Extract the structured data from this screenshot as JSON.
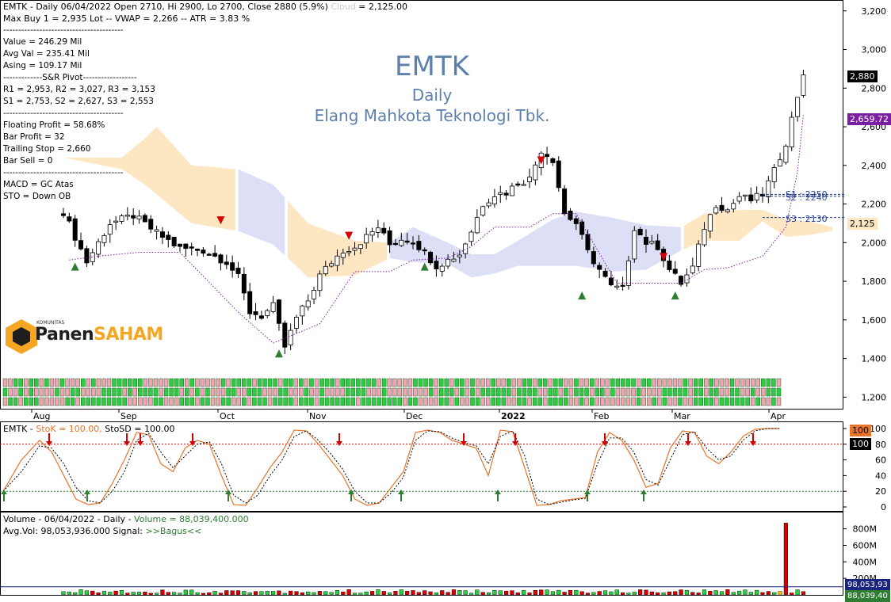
{
  "ticker": "EMTK",
  "timeframe": "Daily",
  "company": "Elang Mahkota Teknologi Tbk.",
  "header": {
    "line1": "EMTK - Daily 06/04/2022 Open 2710, Hi 2900, Lo 2700, Close 2880 (5.9%)",
    "cloud_label": "Cloud",
    "cloud_value": "= 2,125.00",
    "line2": "Max Buy 1 = 2,935 Lot  --  VWAP = 2,266  --  ATR = 3.83 %"
  },
  "info_lines": [
    "----------------------------------------",
    "Value = 246.29 Mil",
    "Avg Val = 235.41 Mil",
    "Asing = 109.17 Mil",
    "-------------S&R Pivot------------------",
    "R1 = 2,953, R2 = 3,027, R3 = 3,153",
    "S1 = 2,753, S2 = 2,627, S3 = 2,553",
    "----------------------------------------",
    "Floating Profit = 58.68%",
    "Bar Profit = 32",
    "Trailing Stop = 2,660",
    "Bar Sell = 0",
    "----------------------------------------",
    "MACD =  GC Atas",
    "STO  =  Down OB"
  ],
  "logo": {
    "small": "KOMUNITAS",
    "part1": "Panen",
    "part2": "SAHAM"
  },
  "price_axis": {
    "ticks": [
      "3,200",
      "3,000",
      "2,800",
      "2,600",
      "2,400",
      "2,200",
      "2,000",
      "1,800",
      "1,600",
      "1,400",
      "1,200"
    ],
    "values": [
      3200,
      3000,
      2800,
      2600,
      2400,
      2200,
      2000,
      1800,
      1600,
      1400,
      1200
    ],
    "range": [
      1140,
      3240
    ]
  },
  "months": [
    "Aug",
    "Sep",
    "Oct",
    "Nov",
    "Dec",
    "2022",
    "Feb",
    "Mar",
    "Apr"
  ],
  "badges": {
    "close": "2,880",
    "trail": "2,659.72",
    "cloud": "2,125"
  },
  "sr_labels": {
    "s1": "S1 : 2250",
    "s2": "S2 : 2240",
    "s3": "S3 : 2130"
  },
  "stoch": {
    "title_prefix": "EMTK - ",
    "title_stok": "StoK = 100.00,",
    "title_stosd": " StoSD = 100.00",
    "ticks": [
      "100",
      "80",
      "60",
      "40",
      "20",
      "0"
    ],
    "tick_values": [
      100,
      80,
      60,
      40,
      20,
      0
    ],
    "badge_stok": "100",
    "badge_stosd": "100",
    "upper": 80,
    "lower": 20
  },
  "volume": {
    "line1_prefix": "Volume - 06/04/2022 - Daily - ",
    "line1_value": "Volume = 88,039,400.000",
    "line2_prefix": "Avg.Vol: 98,053,936.000   Signal: ",
    "line2_signal": ">>Bagus<<",
    "ticks": [
      "800M",
      "600M",
      "400M",
      "200M"
    ],
    "tick_values": [
      800,
      600,
      400,
      200
    ],
    "badge": "98,053,93",
    "badge2": "88,039,40"
  },
  "colors": {
    "up": "#ffffff",
    "down": "#000000",
    "cloud_bull": "#fde7c2",
    "cloud_bear": "#dcdff5",
    "trail": "#7b1fa2",
    "buy": "#2e7d32",
    "sell": "#d50000",
    "stok": "#e8742a",
    "wm": "#5d7fab"
  },
  "chart_data": [
    {
      "type": "candlestick",
      "title": "EMTK Daily",
      "xlabel": "",
      "ylabel": "",
      "ylim": [
        1140,
        3240
      ],
      "x": [
        "Aug",
        "Sep",
        "Oct",
        "Nov",
        "Dec",
        "2022",
        "Feb",
        "Mar",
        "Apr"
      ],
      "close_path_points": [
        [
          0,
          2160
        ],
        [
          4,
          1900
        ],
        [
          8,
          2100
        ],
        [
          12,
          2140
        ],
        [
          16,
          2050
        ],
        [
          20,
          1970
        ],
        [
          24,
          1960
        ],
        [
          28,
          1900
        ],
        [
          30,
          1820
        ],
        [
          32,
          1640
        ],
        [
          34,
          1620
        ],
        [
          36,
          1670
        ],
        [
          38,
          1460
        ],
        [
          40,
          1610
        ],
        [
          42,
          1700
        ],
        [
          44,
          1830
        ],
        [
          46,
          1900
        ],
        [
          48,
          1960
        ],
        [
          50,
          1980
        ],
        [
          52,
          2030
        ],
        [
          54,
          2080
        ],
        [
          56,
          1990
        ],
        [
          58,
          2020
        ],
        [
          60,
          2010
        ],
        [
          62,
          1950
        ],
        [
          64,
          1880
        ],
        [
          66,
          1910
        ],
        [
          68,
          1940
        ],
        [
          70,
          2060
        ],
        [
          72,
          2200
        ],
        [
          74,
          2250
        ],
        [
          76,
          2260
        ],
        [
          78,
          2310
        ],
        [
          80,
          2330
        ],
        [
          82,
          2480
        ],
        [
          84,
          2430
        ],
        [
          86,
          2150
        ],
        [
          88,
          2100
        ],
        [
          90,
          1950
        ],
        [
          92,
          1860
        ],
        [
          94,
          1770
        ],
        [
          96,
          1760
        ],
        [
          98,
          2080
        ],
        [
          100,
          2000
        ],
        [
          102,
          1980
        ],
        [
          104,
          1860
        ],
        [
          106,
          1790
        ],
        [
          108,
          1870
        ],
        [
          110,
          2080
        ],
        [
          112,
          2200
        ],
        [
          114,
          2170
        ],
        [
          116,
          2240
        ],
        [
          118,
          2220
        ],
        [
          120,
          2250
        ],
        [
          122,
          2370
        ],
        [
          124,
          2520
        ],
        [
          126,
          2760
        ],
        [
          127,
          2880
        ]
      ],
      "cloud_top_points": [
        [
          0,
          2440
        ],
        [
          10,
          2440
        ],
        [
          14,
          2540
        ],
        [
          16,
          2600
        ],
        [
          22,
          2400
        ],
        [
          30,
          2380
        ],
        [
          36,
          2300
        ],
        [
          42,
          2100
        ],
        [
          50,
          2010
        ],
        [
          56,
          2000
        ],
        [
          60,
          2080
        ],
        [
          66,
          2000
        ],
        [
          70,
          1940
        ],
        [
          74,
          1940
        ],
        [
          78,
          2010
        ],
        [
          84,
          2120
        ],
        [
          88,
          2160
        ],
        [
          94,
          2130
        ],
        [
          100,
          2090
        ],
        [
          106,
          2080
        ],
        [
          110,
          2150
        ],
        [
          116,
          2170
        ],
        [
          120,
          2170
        ],
        [
          124,
          2120
        ],
        [
          128,
          2110
        ],
        [
          132,
          2080
        ]
      ],
      "cloud_bottom_points": [
        [
          0,
          2440
        ],
        [
          10,
          2380
        ],
        [
          14,
          2300
        ],
        [
          16,
          2250
        ],
        [
          22,
          2100
        ],
        [
          30,
          2060
        ],
        [
          36,
          1990
        ],
        [
          42,
          1820
        ],
        [
          50,
          1830
        ],
        [
          56,
          1920
        ],
        [
          60,
          1900
        ],
        [
          66,
          1890
        ],
        [
          70,
          1820
        ],
        [
          74,
          1840
        ],
        [
          78,
          1880
        ],
        [
          84,
          1880
        ],
        [
          88,
          1880
        ],
        [
          94,
          1850
        ],
        [
          100,
          1860
        ],
        [
          106,
          1960
        ],
        [
          110,
          2010
        ],
        [
          116,
          2010
        ],
        [
          120,
          2110
        ],
        [
          124,
          2030
        ],
        [
          128,
          2040
        ],
        [
          132,
          2060
        ]
      ],
      "trailing_stop_points": [
        [
          1,
          1910
        ],
        [
          6,
          1930
        ],
        [
          13,
          1950
        ],
        [
          20,
          1950
        ],
        [
          30,
          1640
        ],
        [
          36,
          1480
        ],
        [
          40,
          1530
        ],
        [
          44,
          1580
        ],
        [
          50,
          1850
        ],
        [
          56,
          1850
        ],
        [
          60,
          1910
        ],
        [
          66,
          1920
        ],
        [
          70,
          1980
        ],
        [
          74,
          2080
        ],
        [
          80,
          2080
        ],
        [
          84,
          2150
        ],
        [
          88,
          2150
        ],
        [
          95,
          1790
        ],
        [
          106,
          1790
        ],
        [
          110,
          1860
        ],
        [
          114,
          1870
        ],
        [
          120,
          1930
        ],
        [
          124,
          2080
        ],
        [
          126,
          2370
        ],
        [
          127,
          2660
        ]
      ],
      "buy_signals": [
        [
          2,
          1880
        ],
        [
          37,
          1430
        ],
        [
          62,
          1880
        ],
        [
          89,
          1730
        ],
        [
          105,
          1730
        ]
      ],
      "sell_signals": [
        [
          27,
          2120
        ],
        [
          49,
          2040
        ],
        [
          82,
          2430
        ],
        [
          103,
          1930
        ]
      ],
      "sr_levels": {
        "s1": 2250,
        "s2": 2240,
        "s3": 2130
      }
    },
    {
      "type": "line",
      "title": "Stochastic",
      "ylim": [
        0,
        100
      ],
      "series": [
        {
          "name": "StoK",
          "points": [
            [
              0,
              20
            ],
            [
              3,
              60
            ],
            [
              6,
              85
            ],
            [
              8,
              70
            ],
            [
              10,
              40
            ],
            [
              12,
              10
            ],
            [
              14,
              3
            ],
            [
              16,
              5
            ],
            [
              18,
              30
            ],
            [
              20,
              60
            ],
            [
              22,
              95
            ],
            [
              24,
              92
            ],
            [
              26,
              55
            ],
            [
              28,
              45
            ],
            [
              30,
              75
            ],
            [
              32,
              85
            ],
            [
              34,
              80
            ],
            [
              36,
              40
            ],
            [
              38,
              3
            ],
            [
              40,
              2
            ],
            [
              42,
              25
            ],
            [
              44,
              50
            ],
            [
              46,
              70
            ],
            [
              48,
              98
            ],
            [
              50,
              97
            ],
            [
              52,
              80
            ],
            [
              54,
              60
            ],
            [
              56,
              40
            ],
            [
              58,
              10
            ],
            [
              60,
              2
            ],
            [
              62,
              5
            ],
            [
              64,
              25
            ],
            [
              66,
              45
            ],
            [
              68,
              95
            ],
            [
              70,
              98
            ],
            [
              72,
              95
            ],
            [
              74,
              85
            ],
            [
              76,
              80
            ],
            [
              78,
              75
            ],
            [
              80,
              40
            ],
            [
              82,
              98
            ],
            [
              84,
              96
            ],
            [
              86,
              50
            ],
            [
              88,
              2
            ],
            [
              90,
              3
            ],
            [
              92,
              8
            ],
            [
              94,
              10
            ],
            [
              96,
              12
            ],
            [
              98,
              70
            ],
            [
              100,
              95
            ],
            [
              102,
              85
            ],
            [
              104,
              60
            ],
            [
              106,
              25
            ],
            [
              108,
              30
            ],
            [
              110,
              75
            ],
            [
              112,
              97
            ],
            [
              114,
              95
            ],
            [
              116,
              65
            ],
            [
              118,
              55
            ],
            [
              120,
              70
            ],
            [
              122,
              90
            ],
            [
              124,
              99
            ],
            [
              126,
              100
            ],
            [
              128,
              100
            ]
          ]
        },
        {
          "name": "StoSD",
          "points": [
            [
              0,
              20
            ],
            [
              3,
              45
            ],
            [
              6,
              78
            ],
            [
              8,
              75
            ],
            [
              10,
              55
            ],
            [
              12,
              25
            ],
            [
              14,
              8
            ],
            [
              16,
              5
            ],
            [
              18,
              20
            ],
            [
              20,
              45
            ],
            [
              22,
              85
            ],
            [
              24,
              94
            ],
            [
              26,
              70
            ],
            [
              28,
              50
            ],
            [
              30,
              65
            ],
            [
              32,
              80
            ],
            [
              34,
              83
            ],
            [
              36,
              55
            ],
            [
              38,
              15
            ],
            [
              40,
              5
            ],
            [
              42,
              15
            ],
            [
              44,
              40
            ],
            [
              46,
              60
            ],
            [
              48,
              90
            ],
            [
              50,
              97
            ],
            [
              52,
              85
            ],
            [
              54,
              68
            ],
            [
              56,
              48
            ],
            [
              58,
              20
            ],
            [
              60,
              5
            ],
            [
              62,
              5
            ],
            [
              64,
              18
            ],
            [
              66,
              38
            ],
            [
              68,
              85
            ],
            [
              70,
              97
            ],
            [
              72,
              96
            ],
            [
              74,
              88
            ],
            [
              76,
              82
            ],
            [
              78,
              78
            ],
            [
              80,
              55
            ],
            [
              82,
              90
            ],
            [
              84,
              97
            ],
            [
              86,
              65
            ],
            [
              88,
              10
            ],
            [
              90,
              3
            ],
            [
              92,
              6
            ],
            [
              94,
              9
            ],
            [
              96,
              11
            ],
            [
              98,
              55
            ],
            [
              100,
              88
            ],
            [
              102,
              88
            ],
            [
              104,
              70
            ],
            [
              106,
              35
            ],
            [
              108,
              28
            ],
            [
              110,
              60
            ],
            [
              112,
              92
            ],
            [
              114,
              96
            ],
            [
              116,
              75
            ],
            [
              118,
              60
            ],
            [
              120,
              65
            ],
            [
              122,
              85
            ],
            [
              124,
              97
            ],
            [
              126,
              100
            ],
            [
              128,
              100
            ]
          ]
        }
      ],
      "up_arrows": [
        0,
        22,
        57,
        88,
        101,
        148
      ],
      "down_arrows": [
        12,
        24,
        25,
        48,
        84,
        116,
        119,
        149,
        154,
        168
      ]
    },
    {
      "type": "bar",
      "title": "Volume",
      "unit": "M",
      "ylim": [
        0,
        950
      ],
      "spike_bar_index": 124,
      "spike_value": 870
    }
  ]
}
